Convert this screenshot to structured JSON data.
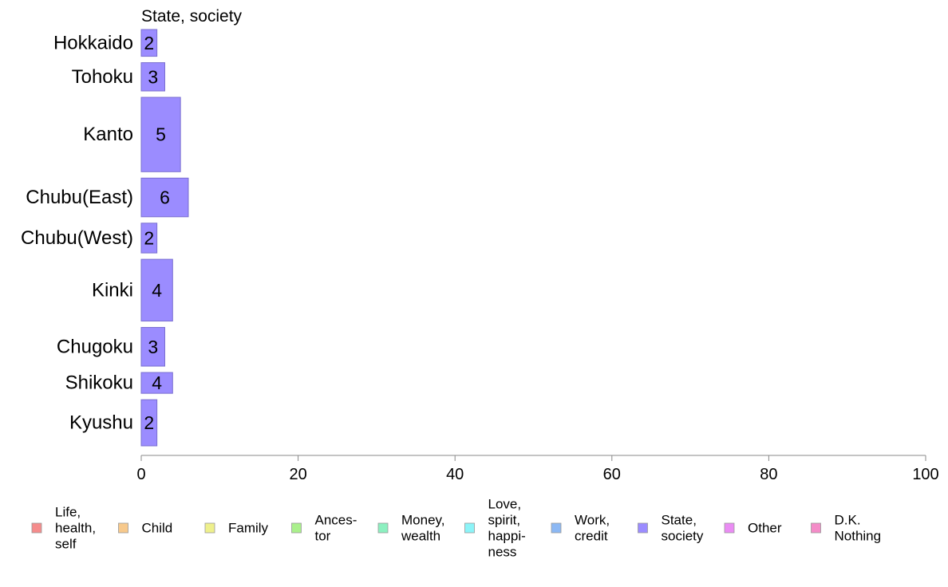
{
  "chart_data": {
    "type": "bar",
    "orientation": "horizontal",
    "panel_title": "State, society",
    "categories": [
      "Hokkaido",
      "Tohoku",
      "Kanto",
      "Chubu(East)",
      "Chubu(West)",
      "Kinki",
      "Chugoku",
      "Shikoku",
      "Kyushu"
    ],
    "values": [
      2,
      3,
      5,
      6,
      2,
      4,
      3,
      4,
      2
    ],
    "bar_widths_relative": [
      0.36,
      0.38,
      1.0,
      0.52,
      0.4,
      0.83,
      0.52,
      0.28,
      0.62
    ],
    "bar_color": "#9b8cff",
    "bar_border_color": "#7a6fd0",
    "xlim": [
      0,
      100
    ],
    "x_ticks": [
      0,
      20,
      40,
      60,
      80,
      100
    ],
    "xlabel": "",
    "ylabel": "",
    "grid": false,
    "legend_position": "bottom",
    "legend": [
      {
        "lines": [
          "Life,",
          "health,",
          "self"
        ],
        "color": "#f58c8c"
      },
      {
        "lines": [
          "Child"
        ],
        "color": "#f7c98c"
      },
      {
        "lines": [
          "Family"
        ],
        "color": "#eef08c"
      },
      {
        "lines": [
          "Ances-",
          "tor"
        ],
        "color": "#aaf08c"
      },
      {
        "lines": [
          "Money,",
          "wealth"
        ],
        "color": "#8cf0c0"
      },
      {
        "lines": [
          "Love,",
          "spirit,",
          "happi-",
          "ness"
        ],
        "color": "#8cf4f8"
      },
      {
        "lines": [
          "Work,",
          "credit"
        ],
        "color": "#8cb8f4"
      },
      {
        "lines": [
          "State,",
          "society"
        ],
        "color": "#9b8cff"
      },
      {
        "lines": [
          "Other"
        ],
        "color": "#ea8cf4"
      },
      {
        "lines": [
          "D.K.",
          "Nothing"
        ],
        "color": "#f48cc8"
      }
    ]
  }
}
